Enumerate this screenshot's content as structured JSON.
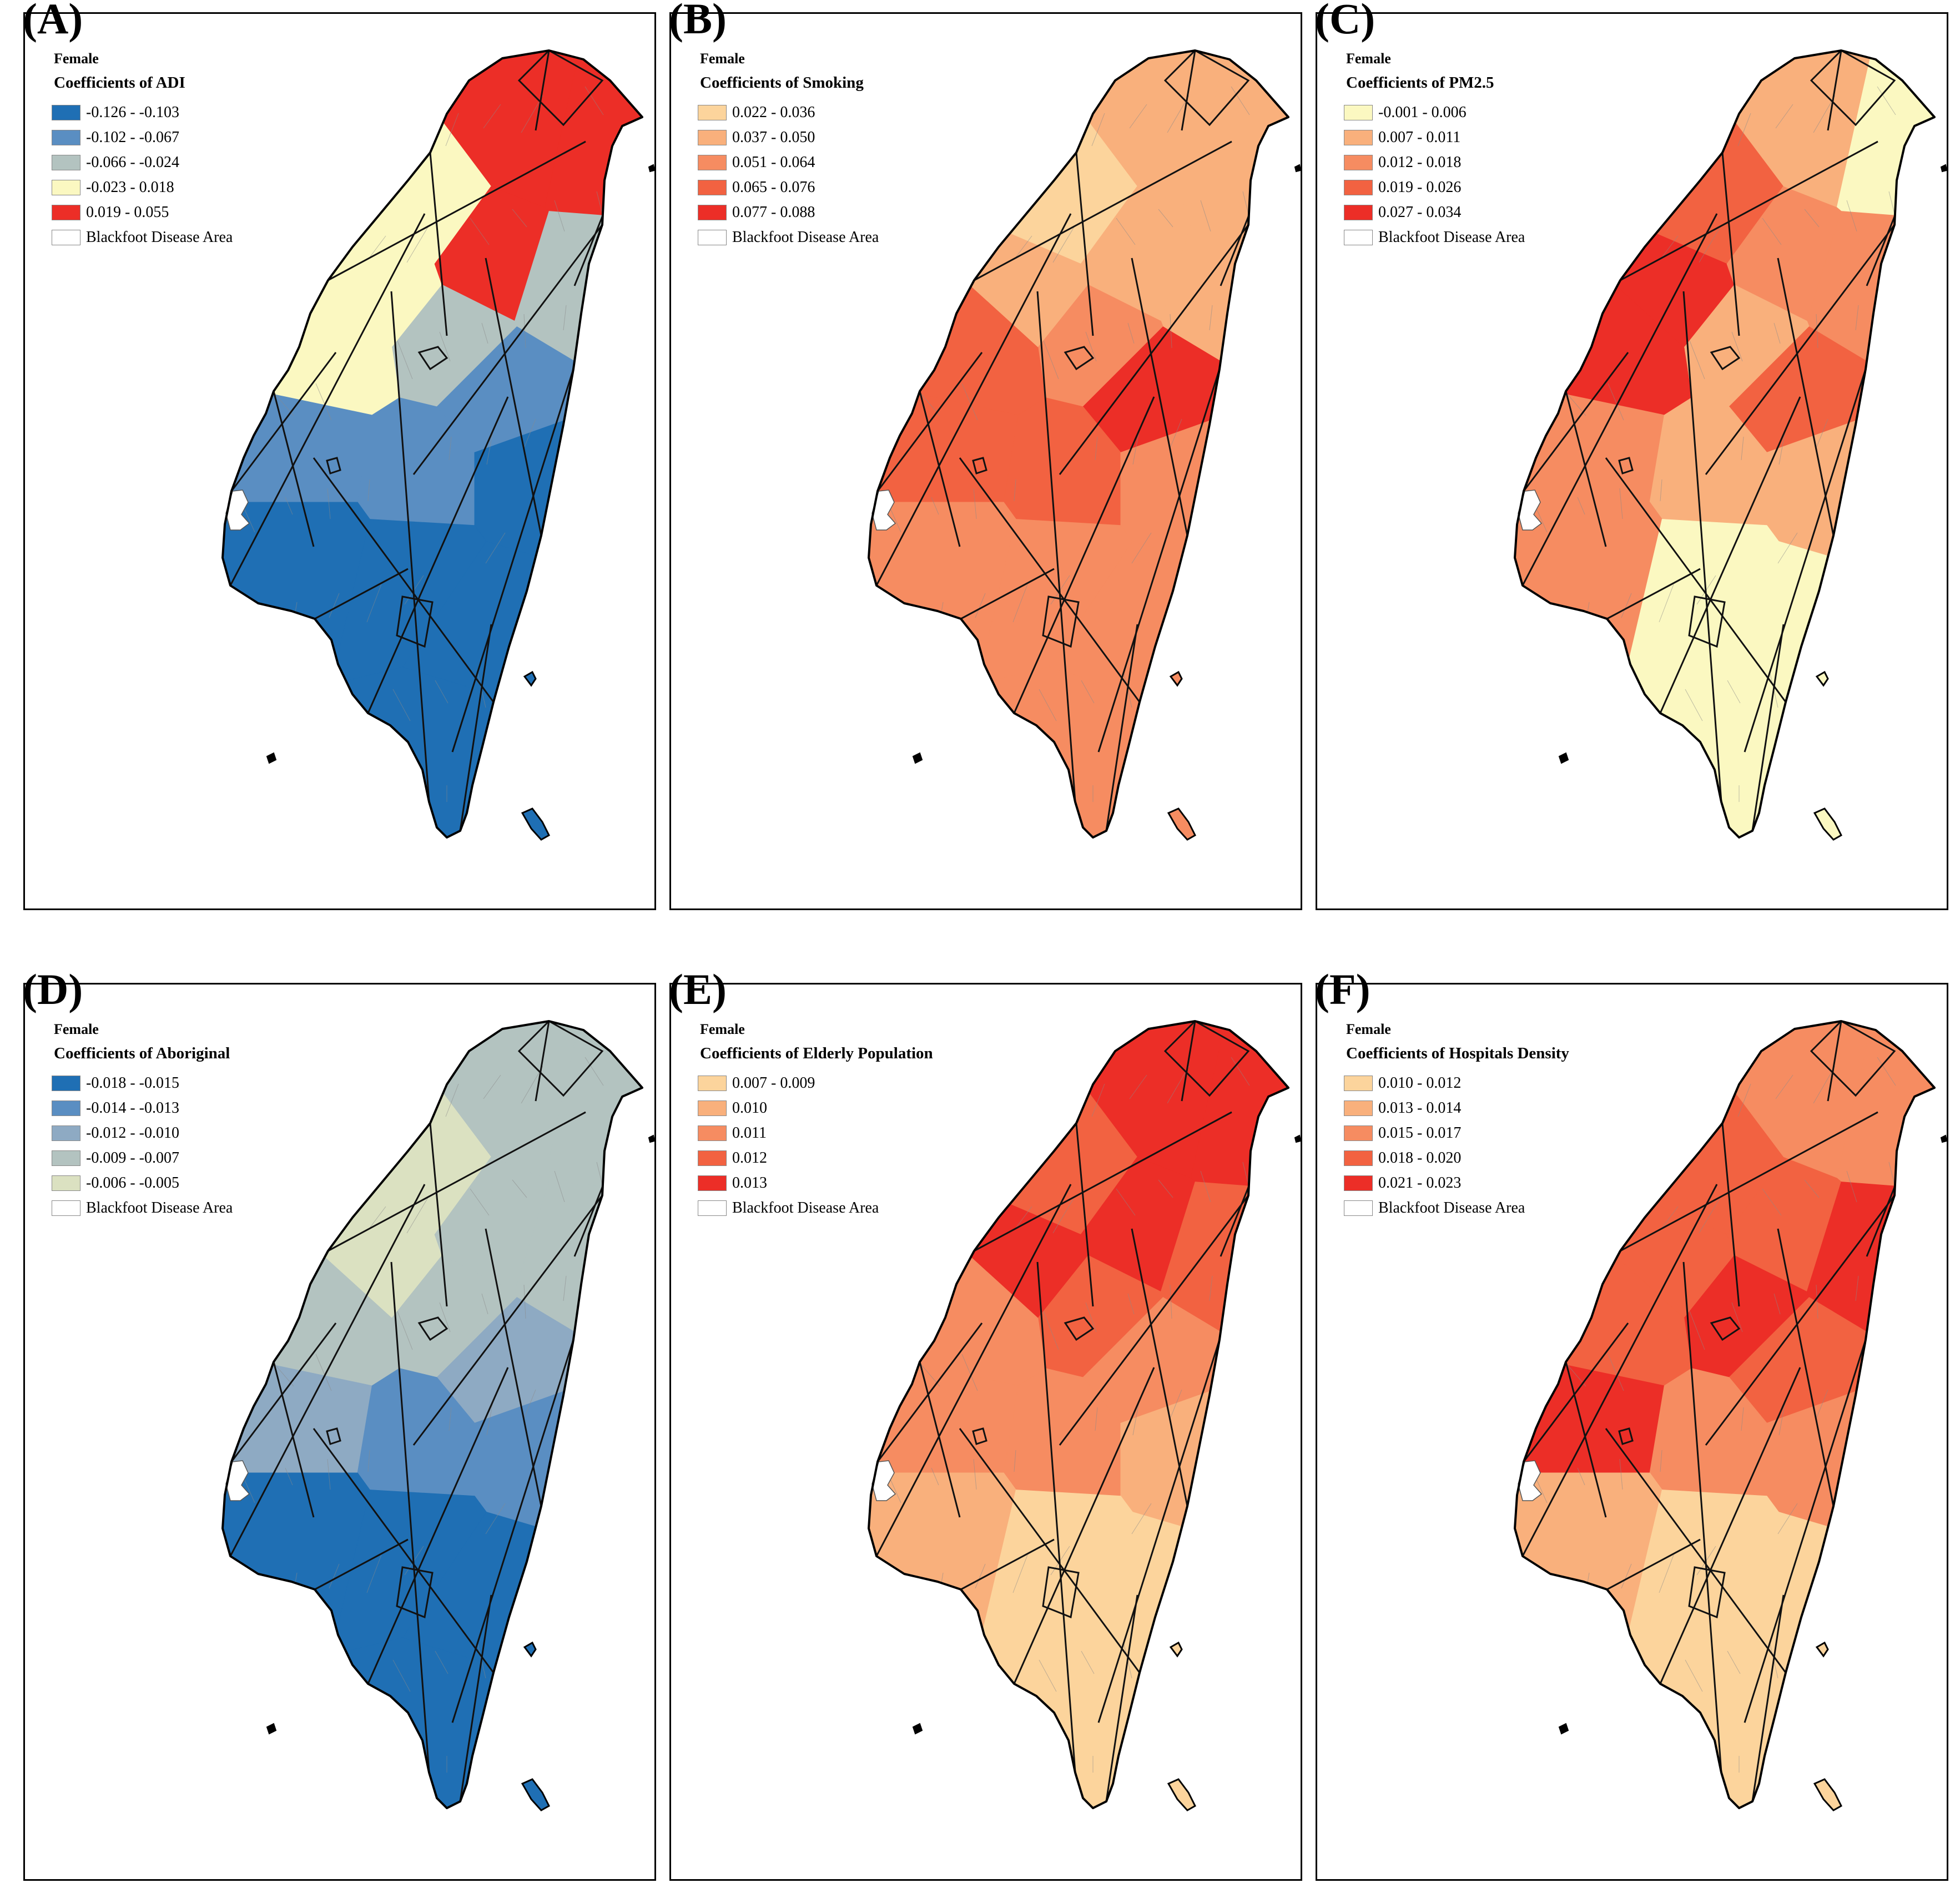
{
  "panels": [
    {
      "id": "A",
      "label": "(A)",
      "sex": "Female",
      "title": "Coefficients of ADI",
      "classes": [
        {
          "label": "-0.126 - -0.103",
          "color": "#1f6fb4"
        },
        {
          "label": "-0.102 - -0.067",
          "color": "#5a8ec2"
        },
        {
          "label": "-0.066 - -0.024",
          "color": "#b3c3c0"
        },
        {
          "label": "-0.023 - 0.018",
          "color": "#fbf8c1"
        },
        {
          "label": "0.019 - 0.055",
          "color": "#ec2e27"
        }
      ],
      "zones": [
        4,
        4,
        3,
        3,
        4,
        2,
        2,
        3,
        1,
        1,
        1,
        0,
        0,
        0,
        0,
        0
      ],
      "blackfoot_label": "Blackfoot Disease Area"
    },
    {
      "id": "B",
      "label": "(B)",
      "sex": "Female",
      "title": "Coefficients of Smoking",
      "classes": [
        {
          "label": "0.022 - 0.036",
          "color": "#fcd49c"
        },
        {
          "label": "0.037 - 0.050",
          "color": "#f9b07c"
        },
        {
          "label": "0.051 - 0.064",
          "color": "#f68c61"
        },
        {
          "label": "0.065 - 0.076",
          "color": "#f26241"
        },
        {
          "label": "0.077 - 0.088",
          "color": "#ec2e27"
        }
      ],
      "zones": [
        1,
        1,
        0,
        1,
        1,
        1,
        2,
        3,
        4,
        3,
        3,
        2,
        2,
        2,
        2,
        2
      ],
      "blackfoot_label": "Blackfoot Disease Area"
    },
    {
      "id": "C",
      "label": "(C)",
      "sex": "Female",
      "title": "Coefficients of PM2.5",
      "classes": [
        {
          "label": "-0.001 - 0.006",
          "color": "#fbf8c1"
        },
        {
          "label": "0.007 - 0.011",
          "color": "#f9b07c"
        },
        {
          "label": "0.012 - 0.018",
          "color": "#f68c61"
        },
        {
          "label": "0.019 - 0.026",
          "color": "#f26241"
        },
        {
          "label": "0.027 - 0.034",
          "color": "#ec2e27"
        }
      ],
      "zones": [
        1,
        0,
        3,
        4,
        2,
        2,
        1,
        4,
        3,
        2,
        1,
        1,
        2,
        0,
        0,
        0
      ],
      "blackfoot_label": "Blackfoot Disease Area"
    },
    {
      "id": "D",
      "label": "(D)",
      "sex": "Female",
      "title": "Coefficients of Aboriginal",
      "classes": [
        {
          "label": "-0.018 - -0.015",
          "color": "#1f6fb4"
        },
        {
          "label": "-0.014 - -0.013",
          "color": "#5a8ec2"
        },
        {
          "label": "-0.012 - -0.010",
          "color": "#8eaac3"
        },
        {
          "label": "-0.009 - -0.007",
          "color": "#b3c3c0"
        },
        {
          "label": "-0.006 - -0.005",
          "color": "#dbe1c1"
        }
      ],
      "zones": [
        3,
        3,
        4,
        4,
        3,
        3,
        3,
        3,
        2,
        2,
        1,
        1,
        0,
        0,
        0,
        0
      ],
      "blackfoot_label": "Blackfoot Disease Area"
    },
    {
      "id": "E",
      "label": "(E)",
      "sex": "Female",
      "title": "Coefficients of Elderly Population",
      "classes": [
        {
          "label": "0.007 - 0.009",
          "color": "#fcd49c"
        },
        {
          "label": "0.010",
          "color": "#f9b07c"
        },
        {
          "label": "0.011",
          "color": "#f68c61"
        },
        {
          "label": "0.012",
          "color": "#f26241"
        },
        {
          "label": "0.013",
          "color": "#ec2e27"
        }
      ],
      "zones": [
        4,
        4,
        3,
        4,
        4,
        3,
        3,
        2,
        2,
        2,
        2,
        1,
        1,
        0,
        0,
        0
      ],
      "blackfoot_label": "Blackfoot Disease Area"
    },
    {
      "id": "F",
      "label": "(F)",
      "sex": "Female",
      "title": "Coefficients of Hospitals Density",
      "classes": [
        {
          "label": "0.010 - 0.012",
          "color": "#fcd49c"
        },
        {
          "label": "0.013 - 0.014",
          "color": "#f9b07c"
        },
        {
          "label": "0.015 - 0.017",
          "color": "#f68c61"
        },
        {
          "label": "0.018 - 0.020",
          "color": "#f26241"
        },
        {
          "label": "0.021 - 0.023",
          "color": "#ec2e27"
        }
      ],
      "zones": [
        2,
        2,
        3,
        3,
        3,
        4,
        4,
        3,
        3,
        4,
        2,
        2,
        1,
        0,
        0,
        0
      ],
      "blackfoot_label": "Blackfoot Disease Area"
    }
  ]
}
